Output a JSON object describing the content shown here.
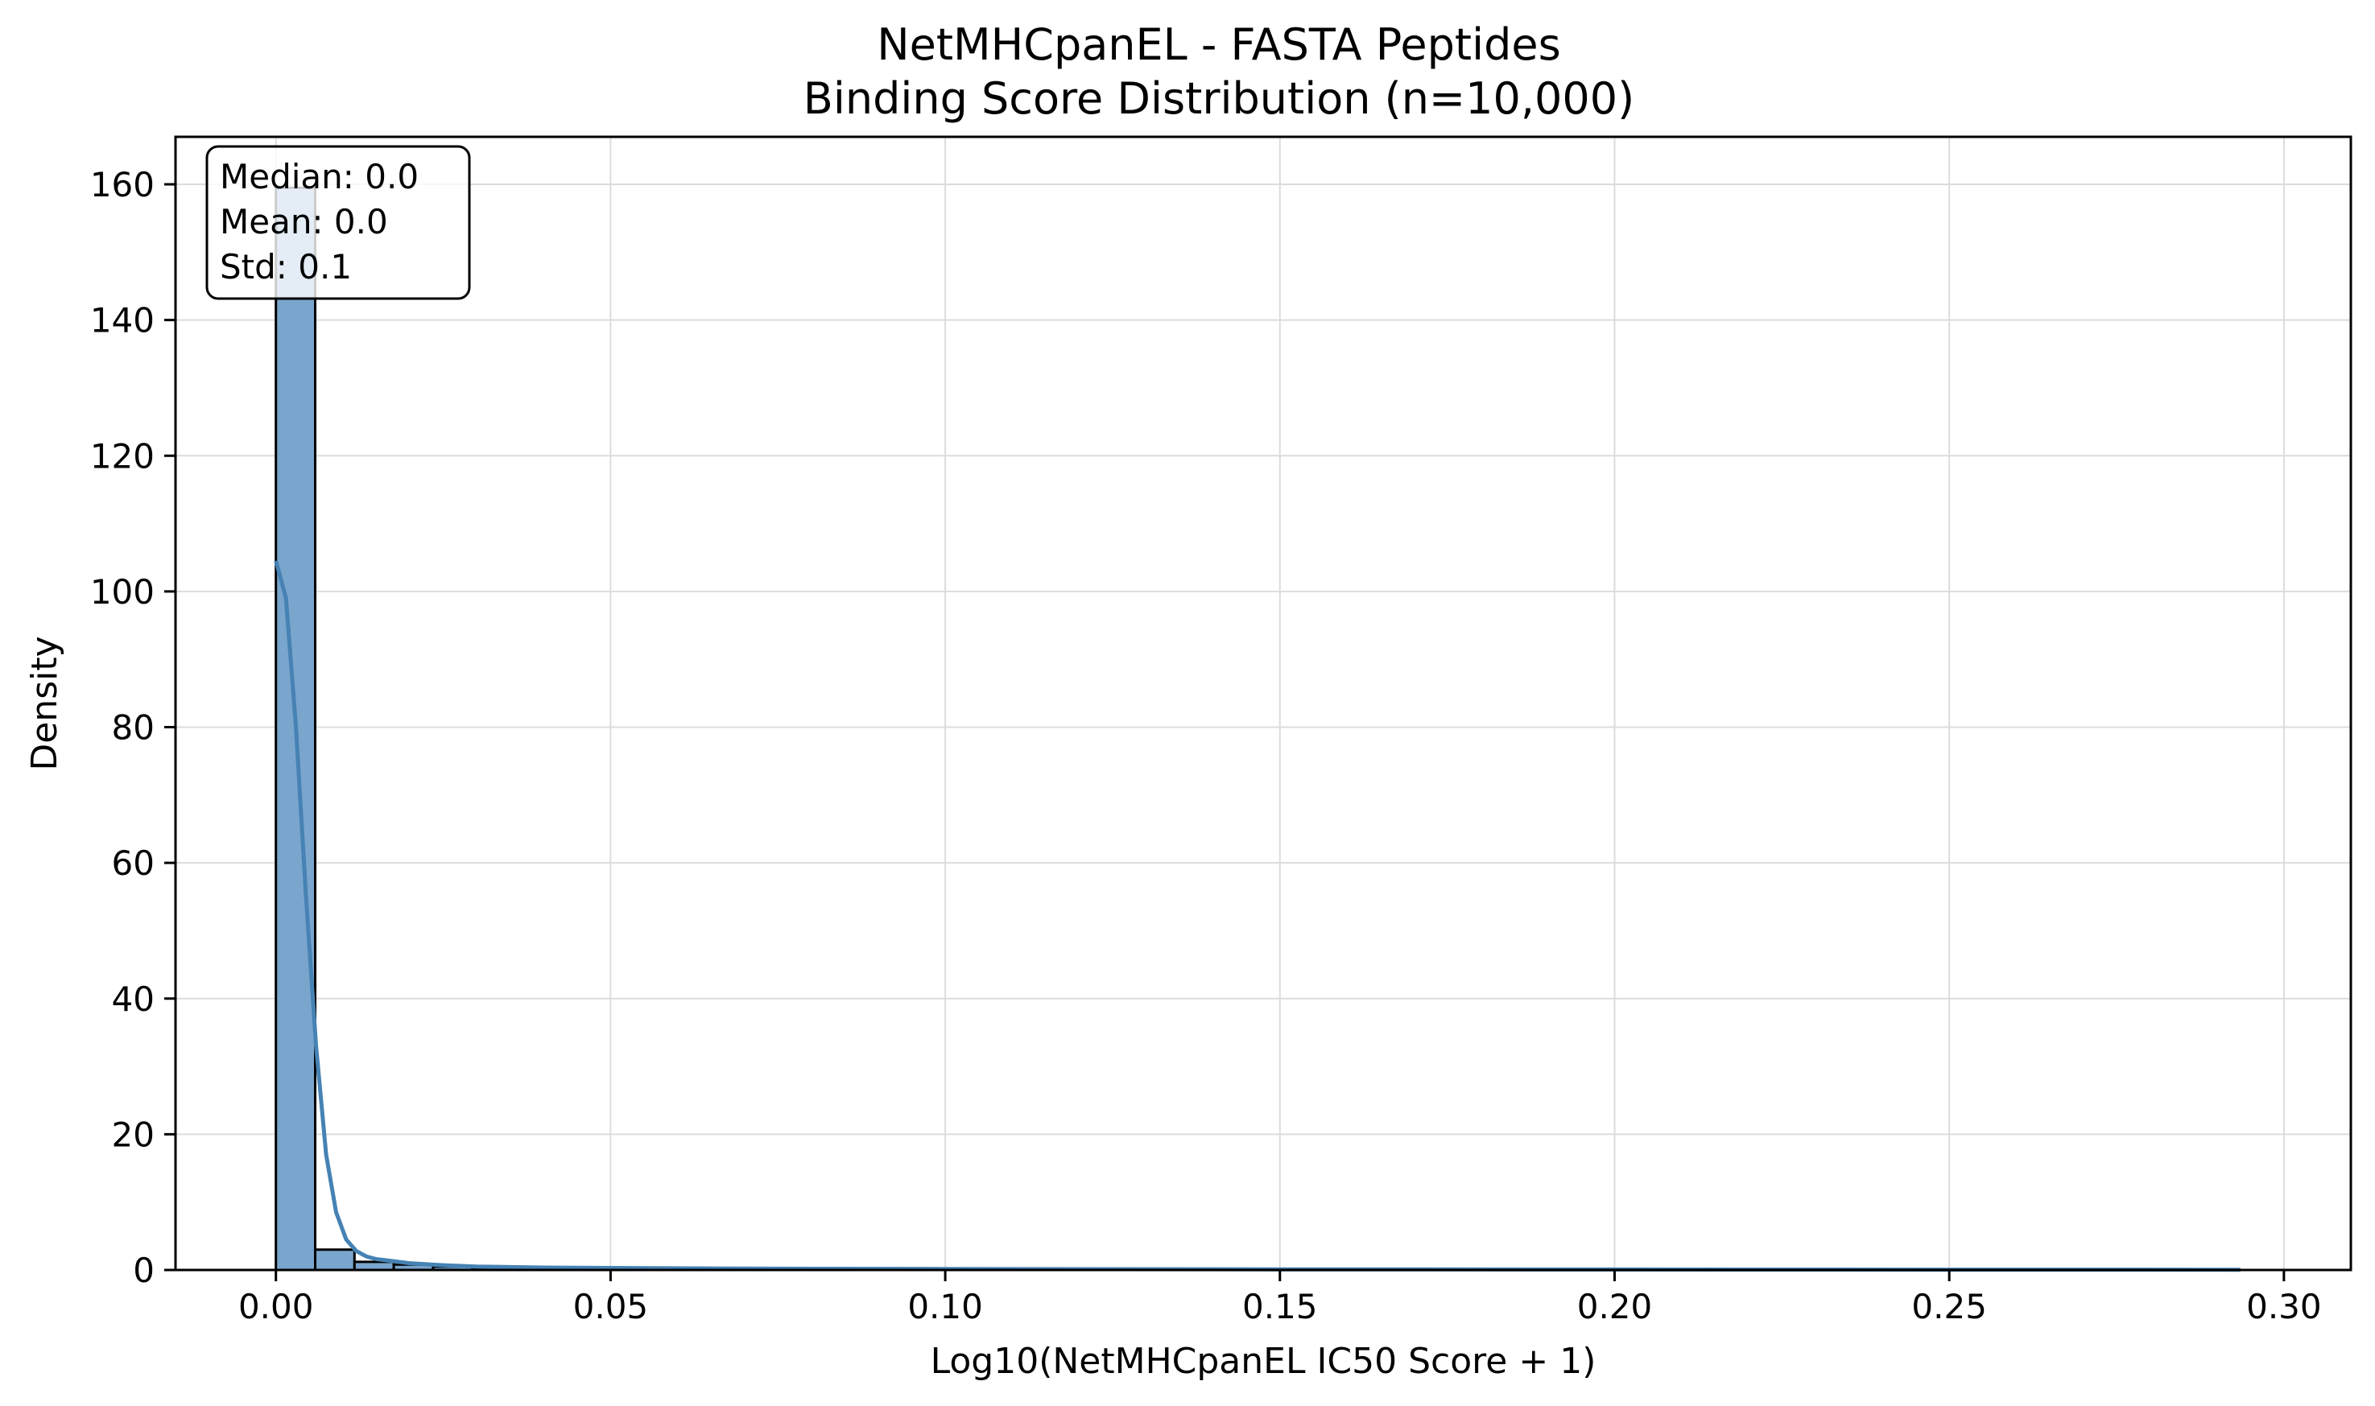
{
  "chart_data": {
    "type": "bar",
    "title": "NetMHCpanEL - FASTA Peptides",
    "subtitle": "Binding Score Distribution (n=10,000)",
    "xlabel": "Log10(NetMHCpanEL IC50 Score + 1)",
    "ylabel": "Density",
    "xlim": [
      -0.015,
      0.31
    ],
    "ylim": [
      0,
      167
    ],
    "xticks": [
      {
        "value": 0.0,
        "label": "0.00"
      },
      {
        "value": 0.05,
        "label": "0.05"
      },
      {
        "value": 0.1,
        "label": "0.10"
      },
      {
        "value": 0.15,
        "label": "0.15"
      },
      {
        "value": 0.2,
        "label": "0.20"
      },
      {
        "value": 0.25,
        "label": "0.25"
      },
      {
        "value": 0.3,
        "label": "0.30"
      }
    ],
    "yticks": [
      {
        "value": 0,
        "label": "0"
      },
      {
        "value": 20,
        "label": "20"
      },
      {
        "value": 40,
        "label": "40"
      },
      {
        "value": 60,
        "label": "60"
      },
      {
        "value": 80,
        "label": "80"
      },
      {
        "value": 100,
        "label": "100"
      },
      {
        "value": 120,
        "label": "120"
      },
      {
        "value": 140,
        "label": "140"
      },
      {
        "value": 160,
        "label": "160"
      }
    ],
    "grid": true,
    "bar_color": "#7aa5cc",
    "bar_edge_color": "#000000",
    "kde_color": "#4682b4",
    "bins": [
      {
        "x0": 0.0,
        "x1": 0.00587,
        "density": 159.5
      },
      {
        "x0": 0.00587,
        "x1": 0.01174,
        "density": 3.0
      },
      {
        "x0": 0.01174,
        "x1": 0.01761,
        "density": 1.2
      },
      {
        "x0": 0.01761,
        "x1": 0.02348,
        "density": 0.8
      },
      {
        "x0": 0.02348,
        "x1": 0.02935,
        "density": 0.5
      },
      {
        "x0": 0.02935,
        "x1": 0.03522,
        "density": 0.3
      },
      {
        "x0": 0.03522,
        "x1": 0.04109,
        "density": 0.25
      },
      {
        "x0": 0.04109,
        "x1": 0.04696,
        "density": 0.2
      },
      {
        "x0": 0.04696,
        "x1": 0.05283,
        "density": 0.15
      },
      {
        "x0": 0.05283,
        "x1": 0.0587,
        "density": 0.12
      },
      {
        "x0": 0.0587,
        "x1": 0.06457,
        "density": 0.1
      },
      {
        "x0": 0.06457,
        "x1": 0.07044,
        "density": 0.08
      },
      {
        "x0": 0.07044,
        "x1": 0.07631,
        "density": 0.06
      },
      {
        "x0": 0.07631,
        "x1": 0.08218,
        "density": 0.05
      }
    ],
    "kde": {
      "x": [
        0.0,
        0.0015,
        0.003,
        0.0045,
        0.006,
        0.0075,
        0.009,
        0.0105,
        0.012,
        0.0135,
        0.015,
        0.0175,
        0.02,
        0.025,
        0.03,
        0.04,
        0.05,
        0.07,
        0.1,
        0.15,
        0.2,
        0.25,
        0.2935
      ],
      "y": [
        104.5,
        99,
        80,
        55,
        33,
        17,
        8.5,
        4.5,
        2.8,
        2.0,
        1.6,
        1.3,
        1.0,
        0.7,
        0.5,
        0.35,
        0.3,
        0.2,
        0.15,
        0.1,
        0.07,
        0.05,
        0.03
      ]
    },
    "stats": {
      "lines": [
        "Median: 0.0",
        "Mean: 0.0",
        "Std: 0.1"
      ]
    }
  }
}
